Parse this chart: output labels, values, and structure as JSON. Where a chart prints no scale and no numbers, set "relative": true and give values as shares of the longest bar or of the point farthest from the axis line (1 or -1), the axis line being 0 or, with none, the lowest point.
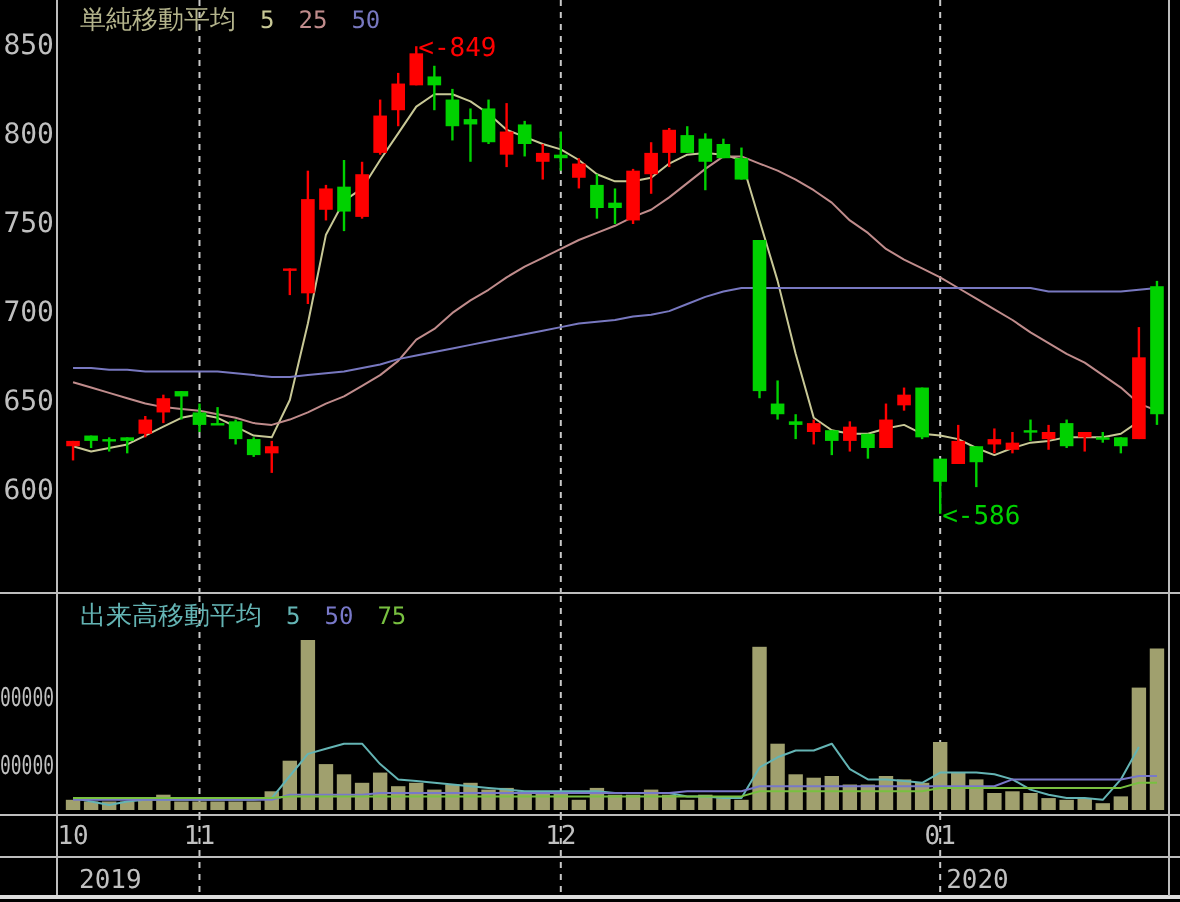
{
  "chart_data": [
    {
      "type": "candlestick",
      "title": "単純移動平均",
      "categories": [
        "10",
        null,
        null,
        null,
        null,
        null,
        null,
        "11",
        null,
        null,
        null,
        null,
        null,
        null,
        null,
        null,
        null,
        null,
        null,
        null,
        null,
        null,
        null,
        null,
        null,
        null,
        null,
        "12",
        null,
        null,
        null,
        null,
        null,
        null,
        null,
        null,
        null,
        null,
        null,
        null,
        null,
        null,
        null,
        null,
        null,
        null,
        null,
        null,
        "01",
        null,
        null,
        null,
        null,
        null,
        null,
        null,
        null,
        null,
        null,
        null,
        null
      ],
      "ohlc": [
        [
          624,
          627,
          616,
          627
        ],
        [
          630,
          630,
          623,
          627
        ],
        [
          628,
          629,
          621,
          627
        ],
        [
          629,
          629,
          620,
          627
        ],
        [
          631,
          641,
          629,
          639
        ],
        [
          643,
          653,
          637,
          651
        ],
        [
          655,
          655,
          639,
          652
        ],
        [
          643,
          648,
          632,
          636
        ],
        [
          637,
          646,
          636,
          636
        ],
        [
          638,
          639,
          625,
          628
        ],
        [
          628,
          629,
          618,
          619
        ],
        [
          620,
          627,
          609,
          624
        ],
        [
          723,
          724,
          709,
          724
        ],
        [
          710,
          779,
          704,
          763
        ],
        [
          757,
          771,
          751,
          769
        ],
        [
          770,
          785,
          745,
          756
        ],
        [
          753,
          784,
          752,
          777
        ],
        [
          789,
          819,
          788,
          810
        ],
        [
          813,
          834,
          804,
          828
        ],
        [
          827,
          849,
          827,
          845
        ],
        [
          832,
          838,
          813,
          827
        ],
        [
          819,
          825,
          796,
          804
        ],
        [
          808,
          814,
          784,
          805
        ],
        [
          814,
          819,
          794,
          795
        ],
        [
          788,
          817,
          781,
          801
        ],
        [
          805,
          807,
          787,
          794
        ],
        [
          784,
          794,
          774,
          789
        ],
        [
          788,
          801,
          779,
          786
        ],
        [
          775,
          786,
          769,
          783
        ],
        [
          771,
          777,
          752,
          758
        ],
        [
          761,
          769,
          749,
          758
        ],
        [
          751,
          780,
          749,
          779
        ],
        [
          777,
          795,
          766,
          789
        ],
        [
          789,
          803,
          781,
          802
        ],
        [
          799,
          804,
          789,
          789
        ],
        [
          797,
          800,
          768,
          784
        ],
        [
          794,
          797,
          786,
          786
        ],
        [
          786,
          792,
          774,
          774
        ],
        [
          740,
          740,
          651,
          655
        ],
        [
          648,
          661,
          639,
          642
        ],
        [
          638,
          642,
          628,
          636
        ],
        [
          632,
          639,
          625,
          637
        ],
        [
          633,
          633,
          619,
          627
        ],
        [
          627,
          638,
          621,
          635
        ],
        [
          631,
          631,
          617,
          623
        ],
        [
          623,
          648,
          623,
          639
        ],
        [
          647,
          657,
          644,
          653
        ],
        [
          657,
          657,
          628,
          629
        ],
        [
          617,
          617,
          586,
          604
        ],
        [
          614,
          636,
          614,
          627
        ],
        [
          624,
          624,
          601,
          615
        ],
        [
          625,
          634,
          620,
          628
        ],
        [
          622,
          632,
          620,
          626
        ],
        [
          633,
          639,
          627,
          632
        ],
        [
          628,
          636,
          622,
          632
        ],
        [
          637,
          639,
          623,
          624
        ],
        [
          629,
          632,
          621,
          632
        ],
        [
          629,
          632,
          626,
          628
        ],
        [
          629,
          629,
          620,
          624
        ],
        [
          628,
          691,
          628,
          674
        ],
        [
          714,
          717,
          636,
          642
        ]
      ],
      "colors": [
        "#ff0000",
        "#00d200",
        "#00d200",
        "#00d200",
        "#ff0000",
        "#ff0000",
        "#00d200",
        "#00d200",
        "#00d200",
        "#00d200",
        "#00d200",
        "#ff0000",
        "#ff0000",
        "#ff0000",
        "#ff0000",
        "#00d200",
        "#ff0000",
        "#ff0000",
        "#ff0000",
        "#ff0000",
        "#00d200",
        "#00d200",
        "#00d200",
        "#00d200",
        "#ff0000",
        "#00d200",
        "#ff0000",
        "#00d200",
        "#ff0000",
        "#00d200",
        "#00d200",
        "#ff0000",
        "#ff0000",
        "#ff0000",
        "#00d200",
        "#00d200",
        "#00d200",
        "#00d200",
        "#00d200",
        "#00d200",
        "#00d200",
        "#ff0000",
        "#00d200",
        "#ff0000",
        "#00d200",
        "#ff0000",
        "#ff0000",
        "#00d200",
        "#00d200",
        "#ff0000",
        "#00d200",
        "#ff0000",
        "#ff0000",
        "#00d200",
        "#ff0000",
        "#00d200",
        "#ff0000",
        "#00d200",
        "#00d200",
        "#ff0000",
        "#00d200"
      ],
      "series": [
        {
          "name": "5",
          "type": "line",
          "color": "#c8c896",
          "values": [
            624,
            621,
            623,
            625,
            630,
            635,
            640,
            642,
            640,
            635,
            630,
            629,
            650,
            693,
            743,
            762,
            769,
            785,
            800,
            815,
            822,
            822,
            818,
            811,
            802,
            798,
            794,
            791,
            785,
            777,
            773,
            773,
            775,
            783,
            788,
            789,
            788,
            785,
            751,
            717,
            676,
            640,
            633,
            631,
            631,
            634,
            636,
            631,
            630,
            628,
            623,
            619,
            623,
            626,
            627,
            629,
            629,
            629,
            631,
            638,
            null
          ]
        },
        {
          "name": "25",
          "type": "line",
          "color": "#c08c8c",
          "values": [
            660,
            657,
            654,
            651,
            648,
            646,
            645,
            644,
            642,
            640,
            637,
            636,
            639,
            643,
            648,
            652,
            658,
            664,
            672,
            684,
            690,
            699,
            706,
            712,
            719,
            725,
            730,
            735,
            740,
            744,
            748,
            753,
            757,
            764,
            772,
            780,
            787,
            787,
            783,
            779,
            774,
            768,
            761,
            751,
            744,
            735,
            729,
            724,
            719,
            713,
            707,
            701,
            695,
            688,
            682,
            676,
            671,
            664,
            657,
            648,
            644
          ]
        },
        {
          "name": "50",
          "type": "line",
          "color": "#7878c0",
          "values": [
            668,
            668,
            667,
            667,
            666,
            666,
            666,
            666,
            666,
            665,
            664,
            663,
            663,
            664,
            665,
            666,
            668,
            670,
            673,
            675,
            677,
            679,
            681,
            683,
            685,
            687,
            689,
            691,
            693,
            694,
            695,
            697,
            698,
            700,
            704,
            708,
            711,
            713,
            713,
            713,
            713,
            713,
            713,
            713,
            713,
            713,
            713,
            713,
            713,
            713,
            713,
            713,
            713,
            713,
            711,
            711,
            711,
            711,
            711,
            712,
            713
          ]
        }
      ],
      "ylim": [
        542,
        875
      ],
      "yticks": [
        600,
        650,
        700,
        750,
        800,
        850
      ],
      "grid": "x",
      "legend": "top left",
      "tick_labels": "y",
      "annotations": [
        "<-849",
        "<-586"
      ]
    },
    {
      "type": "bar",
      "title": "出来高移動平均",
      "relative": true,
      "categories": [
        "10",
        null,
        null,
        null,
        null,
        null,
        null,
        "11",
        null,
        null,
        null,
        null,
        null,
        null,
        null,
        null,
        null,
        null,
        null,
        null,
        null,
        null,
        null,
        null,
        null,
        null,
        null,
        "12",
        null,
        null,
        null,
        null,
        null,
        null,
        null,
        null,
        null,
        null,
        null,
        null,
        null,
        null,
        null,
        null,
        null,
        null,
        null,
        null,
        "01",
        null,
        null,
        null,
        null,
        null,
        null,
        null,
        null,
        null,
        null,
        null,
        null
      ],
      "series": [
        {
          "type": "bar",
          "color": "#a0a06e",
          "values": [
            0.06,
            0.05,
            0.05,
            0.05,
            0.06,
            0.09,
            0.05,
            0.05,
            0.05,
            0.05,
            0.05,
            0.11,
            0.29,
            1,
            0.27,
            0.21,
            0.16,
            0.22,
            0.14,
            0.16,
            0.12,
            0.15,
            0.16,
            0.12,
            0.13,
            0.11,
            0.11,
            0.1,
            0.06,
            0.13,
            0.09,
            0.09,
            0.12,
            0.09,
            0.06,
            0.09,
            0.07,
            0.06,
            0.96,
            0.39,
            0.21,
            0.19,
            0.2,
            0.15,
            0.15,
            0.2,
            0.18,
            0.16,
            0.4,
            0.22,
            0.18,
            0.1,
            0.11,
            0.1,
            0.07,
            0.06,
            0.07,
            0.04,
            0.08,
            0.72,
            0.95
          ]
        },
        {
          "name": "5",
          "type": "line",
          "color": "#64b4b4",
          "values": [
            0.07,
            0.05,
            0.03,
            0.05,
            0.06,
            0.06,
            0.06,
            0.06,
            0.06,
            0.06,
            0.06,
            0.07,
            0.2,
            0.33,
            0.36,
            0.39,
            0.39,
            0.27,
            0.18,
            0.17,
            0.16,
            0.15,
            0.14,
            0.13,
            0.12,
            0.11,
            0.11,
            0.11,
            0.11,
            0.11,
            0.1,
            0.1,
            0.1,
            0.1,
            0.08,
            0.08,
            0.07,
            0.07,
            0.25,
            0.31,
            0.35,
            0.35,
            0.39,
            0.24,
            0.18,
            0.18,
            0.17,
            0.16,
            0.22,
            0.22,
            0.22,
            0.21,
            0.18,
            0.12,
            0.09,
            0.07,
            0.07,
            0.06,
            0.18,
            0.37,
            null
          ]
        },
        {
          "name": "50",
          "type": "line",
          "color": "#7878c8",
          "values": [
            0.06,
            0.06,
            0.06,
            0.06,
            0.06,
            0.06,
            0.06,
            0.06,
            0.06,
            0.06,
            0.06,
            0.06,
            0.09,
            0.09,
            0.09,
            0.09,
            0.09,
            0.1,
            0.1,
            0.1,
            0.1,
            0.1,
            0.1,
            0.1,
            0.1,
            0.1,
            0.1,
            0.1,
            0.1,
            0.1,
            0.1,
            0.1,
            0.1,
            0.1,
            0.11,
            0.11,
            0.11,
            0.11,
            0.14,
            0.14,
            0.14,
            0.14,
            0.14,
            0.14,
            0.14,
            0.14,
            0.14,
            0.14,
            0.14,
            0.14,
            0.14,
            0.14,
            0.18,
            0.18,
            0.18,
            0.18,
            0.18,
            0.18,
            0.18,
            0.2,
            0.2
          ]
        },
        {
          "name": "75",
          "type": "line",
          "color": "#78c040",
          "values": [
            0.07,
            0.07,
            0.07,
            0.07,
            0.07,
            0.07,
            0.07,
            0.07,
            0.07,
            0.07,
            0.07,
            0.07,
            0.08,
            0.08,
            0.08,
            0.08,
            0.08,
            0.08,
            0.08,
            0.08,
            0.08,
            0.08,
            0.08,
            0.08,
            0.08,
            0.08,
            0.08,
            0.08,
            0.08,
            0.08,
            0.08,
            0.08,
            0.08,
            0.08,
            0.08,
            0.08,
            0.08,
            0.08,
            0.11,
            0.11,
            0.11,
            0.11,
            0.11,
            0.11,
            0.11,
            0.11,
            0.11,
            0.11,
            0.13,
            0.13,
            0.13,
            0.13,
            0.13,
            0.13,
            0.13,
            0.13,
            0.13,
            0.13,
            0.13,
            0.16,
            0.16
          ]
        }
      ],
      "grid": "x",
      "legend": "top left",
      "tick_labels": "x",
      "annotations": [
        "00000",
        "00000",
        "2019",
        "2020"
      ]
    }
  ]
}
